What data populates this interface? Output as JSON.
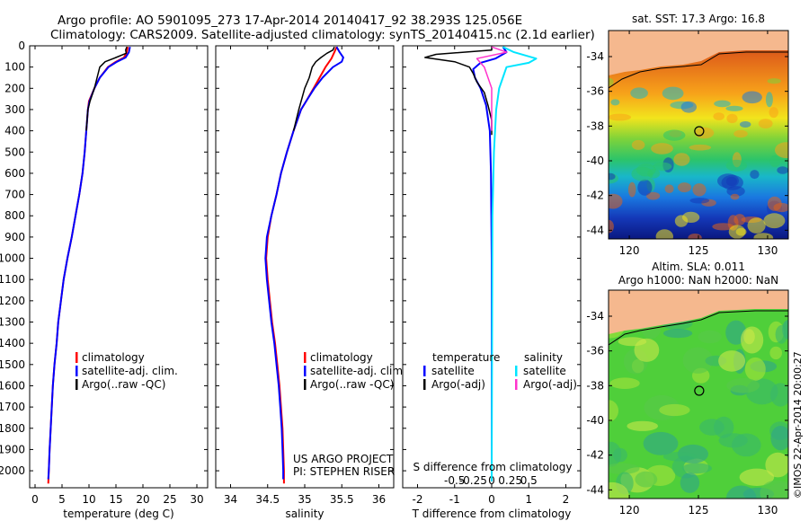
{
  "header": {
    "line1": "Argo profile: AO 5901095_273 17-Apr-2014 20140417_92 38.293S 125.056E",
    "line2": "Climatology: CARS2009. Satellite-adjusted climatology: synTS_20140415.nc (2.1d earlier)"
  },
  "colors": {
    "climatology": "#ff0000",
    "satellite": "#0000ff",
    "argo": "#000000",
    "sal_satellite": "#00e5ff",
    "sal_argo": "#ff33cc",
    "land": "#f5b88e"
  },
  "chart_data": [
    {
      "id": "temperature",
      "type": "line",
      "xlabel": "temperature (deg C)",
      "ylabel": "",
      "xlim": [
        -1,
        32
      ],
      "ylim": [
        0,
        2080
      ],
      "y_reversed": true,
      "xticks": [
        0,
        5,
        10,
        15,
        20,
        25,
        30
      ],
      "yticks": [
        0,
        100,
        200,
        300,
        400,
        500,
        600,
        700,
        800,
        900,
        1000,
        1100,
        1200,
        1300,
        1400,
        1500,
        1600,
        1700,
        1800,
        1900,
        2000
      ],
      "legend": {
        "entries": [
          "climatology",
          "satellite-adj. clim.",
          "Argo(..raw -QC)"
        ],
        "colors": [
          "#ff0000",
          "#0000ff",
          "#000000"
        ]
      },
      "series": [
        {
          "name": "climatology",
          "color": "#ff0000",
          "width": 2,
          "points": [
            [
              17.2,
              5
            ],
            [
              17.0,
              30
            ],
            [
              16.5,
              55
            ],
            [
              15.0,
              75
            ],
            [
              13.5,
              100
            ],
            [
              12.0,
              150
            ],
            [
              11.0,
              200
            ],
            [
              10.0,
              260
            ],
            [
              9.8,
              300
            ],
            [
              9.5,
              400
            ],
            [
              9.2,
              500
            ],
            [
              8.8,
              600
            ],
            [
              8.2,
              700
            ],
            [
              7.5,
              800
            ],
            [
              6.8,
              900
            ],
            [
              6.0,
              1000
            ],
            [
              5.3,
              1100
            ],
            [
              4.8,
              1200
            ],
            [
              4.3,
              1300
            ],
            [
              4.0,
              1400
            ],
            [
              3.6,
              1500
            ],
            [
              3.3,
              1600
            ],
            [
              3.1,
              1700
            ],
            [
              2.9,
              1800
            ],
            [
              2.7,
              1900
            ],
            [
              2.55,
              2000
            ],
            [
              2.45,
              2060
            ]
          ]
        },
        {
          "name": "satellite-adj. clim.",
          "color": "#0000ff",
          "width": 2,
          "points": [
            [
              17.6,
              5
            ],
            [
              17.4,
              30
            ],
            [
              16.8,
              55
            ],
            [
              15.2,
              75
            ],
            [
              13.6,
              100
            ],
            [
              12.0,
              150
            ],
            [
              11.0,
              200
            ],
            [
              10.1,
              260
            ],
            [
              9.8,
              300
            ],
            [
              9.5,
              400
            ],
            [
              9.2,
              500
            ],
            [
              8.8,
              600
            ],
            [
              8.2,
              700
            ],
            [
              7.5,
              800
            ],
            [
              6.8,
              900
            ],
            [
              6.0,
              1000
            ],
            [
              5.3,
              1100
            ],
            [
              4.8,
              1200
            ],
            [
              4.3,
              1300
            ],
            [
              4.0,
              1400
            ],
            [
              3.6,
              1500
            ],
            [
              3.3,
              1600
            ],
            [
              3.1,
              1700
            ],
            [
              2.9,
              1800
            ],
            [
              2.7,
              1900
            ],
            [
              2.55,
              2000
            ],
            [
              2.45,
              2040
            ]
          ]
        },
        {
          "name": "Argo(..raw -QC)",
          "color": "#000000",
          "width": 1.5,
          "points": [
            [
              17.0,
              5
            ],
            [
              16.8,
              20
            ],
            [
              16.9,
              35
            ],
            [
              15.0,
              55
            ],
            [
              13.0,
              75
            ],
            [
              12.0,
              100
            ],
            [
              11.5,
              150
            ],
            [
              11.0,
              200
            ],
            [
              10.2,
              260
            ],
            [
              9.8,
              300
            ],
            [
              9.5,
              400
            ]
          ]
        }
      ]
    },
    {
      "id": "salinity",
      "type": "line",
      "xlabel": "salinity",
      "ylabel": "",
      "xlim": [
        33.8,
        36.2
      ],
      "ylim": [
        0,
        2080
      ],
      "y_reversed": true,
      "xticks": [
        34,
        34.5,
        35,
        35.5,
        36
      ],
      "legend": {
        "entries": [
          "climatology",
          "satellite-adj. clim.",
          "Argo(..raw -QC)"
        ],
        "colors": [
          "#ff0000",
          "#0000ff",
          "#000000"
        ]
      },
      "annotation": [
        "US ARGO PROJECT",
        "PI: STEPHEN RISER"
      ],
      "series": [
        {
          "name": "climatology",
          "color": "#ff0000",
          "width": 2,
          "points": [
            [
              35.43,
              5
            ],
            [
              35.4,
              30
            ],
            [
              35.36,
              60
            ],
            [
              35.32,
              80
            ],
            [
              35.28,
              100
            ],
            [
              35.2,
              150
            ],
            [
              35.12,
              200
            ],
            [
              35.02,
              260
            ],
            [
              34.95,
              300
            ],
            [
              34.85,
              400
            ],
            [
              34.76,
              500
            ],
            [
              34.68,
              600
            ],
            [
              34.62,
              700
            ],
            [
              34.55,
              800
            ],
            [
              34.5,
              900
            ],
            [
              34.48,
              1000
            ],
            [
              34.5,
              1100
            ],
            [
              34.53,
              1200
            ],
            [
              34.56,
              1300
            ],
            [
              34.6,
              1400
            ],
            [
              34.63,
              1500
            ],
            [
              34.66,
              1600
            ],
            [
              34.68,
              1700
            ],
            [
              34.7,
              1800
            ],
            [
              34.71,
              1900
            ],
            [
              34.72,
              2000
            ],
            [
              34.72,
              2060
            ]
          ]
        },
        {
          "name": "satellite-adj. clim.",
          "color": "#0000ff",
          "width": 2,
          "points": [
            [
              35.43,
              5
            ],
            [
              35.47,
              30
            ],
            [
              35.52,
              55
            ],
            [
              35.5,
              75
            ],
            [
              35.38,
              100
            ],
            [
              35.24,
              150
            ],
            [
              35.13,
              200
            ],
            [
              35.02,
              260
            ],
            [
              34.95,
              300
            ],
            [
              34.85,
              400
            ],
            [
              34.76,
              500
            ],
            [
              34.68,
              600
            ],
            [
              34.62,
              700
            ],
            [
              34.55,
              800
            ],
            [
              34.49,
              900
            ],
            [
              34.47,
              1000
            ],
            [
              34.49,
              1100
            ],
            [
              34.52,
              1200
            ],
            [
              34.55,
              1300
            ],
            [
              34.59,
              1400
            ],
            [
              34.62,
              1500
            ],
            [
              34.65,
              1600
            ],
            [
              34.67,
              1700
            ],
            [
              34.69,
              1800
            ],
            [
              34.7,
              1900
            ],
            [
              34.71,
              2000
            ],
            [
              34.71,
              2040
            ]
          ]
        },
        {
          "name": "Argo(..raw -QC)",
          "color": "#000000",
          "width": 1.5,
          "points": [
            [
              35.4,
              5
            ],
            [
              35.38,
              20
            ],
            [
              35.3,
              35
            ],
            [
              35.22,
              55
            ],
            [
              35.15,
              75
            ],
            [
              35.1,
              100
            ],
            [
              35.06,
              150
            ],
            [
              35.0,
              200
            ],
            [
              34.92,
              300
            ],
            [
              34.85,
              400
            ]
          ]
        }
      ]
    },
    {
      "id": "difference",
      "type": "line",
      "xlabel": "T difference from climatology",
      "top_label": "S difference from climatology",
      "xlim": [
        -2.4,
        2.4
      ],
      "ylim": [
        0,
        2080
      ],
      "y_reversed": true,
      "xticks": [
        -2,
        -1,
        0,
        1,
        2
      ],
      "sticks": [
        -0.5,
        -0.25,
        0,
        0.25,
        0.5
      ],
      "stick_labels": [
        "-0.5",
        "-0.25",
        "0",
        "0.25",
        "0.5"
      ],
      "legend_temperature": {
        "title": "temperature",
        "entries": [
          "satellite",
          "Argo(-adj)"
        ],
        "colors": [
          "#0000ff",
          "#000000"
        ]
      },
      "legend_salinity": {
        "title": "salinity",
        "entries": [
          "satellite",
          "Argo(-adj)"
        ],
        "colors": [
          "#00e5ff",
          "#ff33cc"
        ]
      },
      "series": [
        {
          "name": "T satellite",
          "color": "#0000ff",
          "width": 2,
          "points": [
            [
              0.3,
              5
            ],
            [
              0.4,
              30
            ],
            [
              0.1,
              60
            ],
            [
              -0.3,
              80
            ],
            [
              -0.5,
              110
            ],
            [
              -0.45,
              150
            ],
            [
              -0.3,
              200
            ],
            [
              -0.15,
              280
            ],
            [
              -0.05,
              400
            ],
            [
              -0.02,
              600
            ],
            [
              0.0,
              1000
            ],
            [
              0.0,
              2050
            ]
          ]
        },
        {
          "name": "T Argo(-adj)",
          "color": "#000000",
          "width": 1.5,
          "points": [
            [
              0.0,
              5
            ],
            [
              0.0,
              20
            ],
            [
              -1.5,
              40
            ],
            [
              -1.8,
              55
            ],
            [
              -1.0,
              75
            ],
            [
              -0.6,
              100
            ],
            [
              -0.5,
              130
            ],
            [
              -0.4,
              170
            ],
            [
              -0.2,
              220
            ],
            [
              -0.1,
              280
            ],
            [
              0.0,
              350
            ],
            [
              0.0,
              420
            ]
          ]
        },
        {
          "name": "S satellite",
          "color": "#00e5ff",
          "width": 2,
          "points": [
            [
              0.15,
              5
            ],
            [
              0.3,
              30
            ],
            [
              0.6,
              60
            ],
            [
              0.5,
              80
            ],
            [
              0.2,
              100
            ],
            [
              0.15,
              150
            ],
            [
              0.1,
              200
            ],
            [
              0.06,
              300
            ],
            [
              0.03,
              500
            ],
            [
              0.01,
              800
            ],
            [
              0.0,
              2050
            ]
          ]
        },
        {
          "name": "S Argo(-adj)",
          "color": "#ff33cc",
          "width": 1.5,
          "points": [
            [
              0.0,
              5
            ],
            [
              0.2,
              30
            ],
            [
              -0.2,
              60
            ],
            [
              -0.1,
              100
            ],
            [
              -0.05,
              150
            ],
            [
              0.0,
              200
            ],
            [
              0.0,
              300
            ],
            [
              0.0,
              400
            ]
          ]
        }
      ]
    },
    {
      "id": "sst_map",
      "type": "heatmap",
      "title": "sat. SST: 17.3 Argo: 16.8",
      "xlim": [
        118.5,
        131.5
      ],
      "ylim": [
        -44.5,
        -32.5
      ],
      "xticks": [
        120,
        125,
        130
      ],
      "yticks": [
        -34,
        -36,
        -38,
        -40,
        -42,
        -44
      ],
      "marker": {
        "lon": 125.056,
        "lat": -38.293
      }
    },
    {
      "id": "sla_map",
      "type": "heatmap",
      "title": [
        "Altim. SLA: 0.011",
        "Argo h1000: NaN h2000: NaN"
      ],
      "xlim": [
        118.5,
        131.5
      ],
      "ylim": [
        -44.5,
        -32.5
      ],
      "xticks": [
        120,
        125,
        130
      ],
      "yticks": [
        -34,
        -36,
        -38,
        -40,
        -42,
        -44
      ],
      "marker": {
        "lon": 125.056,
        "lat": -38.293
      }
    }
  ],
  "footer": {
    "credit": "©IMOS 22-Apr-2014 20:00:27"
  }
}
